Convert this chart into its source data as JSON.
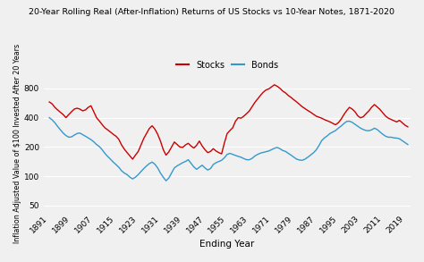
{
  "title": "20-Year Rolling Real (After-Inflation) Returns of US Stocks vs 10-Year Notes, 1871-2020",
  "xlabel": "Ending Year",
  "ylabel": "Inflation Adjusted Value of $100 Invested After 20 Years",
  "legend_labels": [
    "Stocks",
    "Bonds"
  ],
  "stocks_color": "#cc0000",
  "bonds_color": "#3399cc",
  "background_color": "#f0f0f0",
  "grid_color": "#ffffff",
  "yticks": [
    50,
    100,
    200,
    400,
    800
  ],
  "xticks": [
    1891,
    1899,
    1907,
    1915,
    1923,
    1931,
    1939,
    1947,
    1955,
    1963,
    1971,
    1979,
    1987,
    1995,
    2003,
    2011,
    2019
  ],
  "years": [
    1891,
    1892,
    1893,
    1894,
    1895,
    1896,
    1897,
    1898,
    1899,
    1900,
    1901,
    1902,
    1903,
    1904,
    1905,
    1906,
    1907,
    1908,
    1909,
    1910,
    1911,
    1912,
    1913,
    1914,
    1915,
    1916,
    1917,
    1918,
    1919,
    1920,
    1921,
    1922,
    1923,
    1924,
    1925,
    1926,
    1927,
    1928,
    1929,
    1930,
    1931,
    1932,
    1933,
    1934,
    1935,
    1936,
    1937,
    1938,
    1939,
    1940,
    1941,
    1942,
    1943,
    1944,
    1945,
    1946,
    1947,
    1948,
    1949,
    1950,
    1951,
    1952,
    1953,
    1954,
    1955,
    1956,
    1957,
    1958,
    1959,
    1960,
    1961,
    1962,
    1963,
    1964,
    1965,
    1966,
    1967,
    1968,
    1969,
    1970,
    1971,
    1972,
    1973,
    1974,
    1975,
    1976,
    1977,
    1978,
    1979,
    1980,
    1981,
    1982,
    1983,
    1984,
    1985,
    1986,
    1987,
    1988,
    1989,
    1990,
    1991,
    1992,
    1993,
    1994,
    1995,
    1996,
    1997,
    1998,
    1999,
    2000,
    2001,
    2002,
    2003,
    2004,
    2005,
    2006,
    2007,
    2008,
    2009,
    2010,
    2011,
    2012,
    2013,
    2014,
    2015,
    2016,
    2017,
    2018,
    2019,
    2020
  ],
  "stocks": [
    580,
    555,
    510,
    480,
    455,
    430,
    400,
    430,
    460,
    490,
    500,
    490,
    470,
    480,
    510,
    530,
    460,
    400,
    370,
    340,
    315,
    300,
    285,
    270,
    258,
    240,
    210,
    190,
    175,
    162,
    150,
    165,
    180,
    210,
    245,
    275,
    310,
    330,
    305,
    270,
    230,
    188,
    165,
    178,
    200,
    225,
    212,
    200,
    198,
    210,
    218,
    205,
    195,
    208,
    230,
    205,
    188,
    175,
    180,
    192,
    182,
    175,
    170,
    220,
    275,
    295,
    315,
    368,
    400,
    395,
    415,
    440,
    470,
    520,
    575,
    625,
    678,
    730,
    770,
    790,
    830,
    870,
    840,
    800,
    750,
    718,
    675,
    645,
    610,
    580,
    548,
    518,
    495,
    474,
    455,
    435,
    415,
    405,
    395,
    382,
    372,
    362,
    350,
    338,
    355,
    385,
    430,
    472,
    510,
    490,
    460,
    418,
    398,
    410,
    440,
    470,
    512,
    545,
    515,
    485,
    448,
    415,
    395,
    383,
    372,
    362,
    375,
    355,
    335,
    322
  ],
  "bonds": [
    400,
    380,
    355,
    325,
    300,
    278,
    262,
    252,
    254,
    265,
    275,
    278,
    268,
    258,
    248,
    238,
    226,
    212,
    202,
    188,
    172,
    160,
    150,
    140,
    132,
    124,
    114,
    108,
    104,
    98,
    94,
    98,
    104,
    112,
    120,
    128,
    135,
    140,
    133,
    122,
    108,
    98,
    90,
    96,
    108,
    122,
    128,
    133,
    138,
    142,
    148,
    136,
    125,
    118,
    124,
    130,
    122,
    116,
    120,
    132,
    138,
    142,
    146,
    155,
    168,
    172,
    168,
    164,
    160,
    157,
    152,
    148,
    148,
    153,
    162,
    168,
    173,
    176,
    179,
    182,
    188,
    194,
    198,
    192,
    184,
    180,
    172,
    165,
    157,
    150,
    147,
    146,
    150,
    157,
    165,
    174,
    186,
    206,
    232,
    248,
    260,
    275,
    285,
    295,
    312,
    328,
    348,
    366,
    368,
    358,
    342,
    327,
    312,
    302,
    295,
    294,
    300,
    312,
    302,
    285,
    270,
    258,
    252,
    252,
    248,
    247,
    243,
    232,
    222,
    212
  ]
}
